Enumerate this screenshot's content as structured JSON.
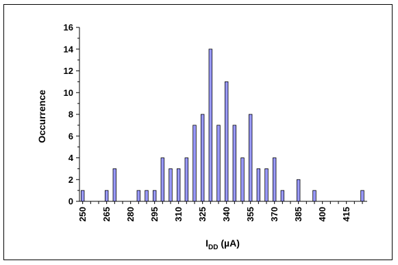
{
  "chart_data": {
    "type": "bar",
    "ylabel": "Occurrence",
    "xlabel_main": "I",
    "xlabel_sub": "DD",
    "xlabel_unit": " (µA)",
    "ylim": [
      0,
      16
    ],
    "yticks": [
      "0",
      "2",
      "4",
      "6",
      "8",
      "10",
      "12",
      "14",
      "16"
    ],
    "xticks": [
      "250",
      "265",
      "280",
      "295",
      "310",
      "325",
      "340",
      "355",
      "370",
      "385",
      "400",
      "415"
    ],
    "bar_color": "#9999ff",
    "x": [
      250,
      255,
      260,
      265,
      270,
      275,
      280,
      285,
      290,
      295,
      300,
      305,
      310,
      315,
      320,
      325,
      330,
      335,
      340,
      345,
      350,
      355,
      360,
      365,
      370,
      375,
      380,
      385,
      390,
      395,
      400,
      405,
      410,
      415,
      420,
      425
    ],
    "values": [
      1,
      0,
      0,
      1,
      3,
      0,
      0,
      1,
      1,
      1,
      4,
      3,
      3,
      4,
      7,
      8,
      14,
      7,
      11,
      7,
      4,
      8,
      3,
      3,
      4,
      1,
      0,
      2,
      0,
      1,
      0,
      0,
      0,
      0,
      0,
      1
    ]
  }
}
